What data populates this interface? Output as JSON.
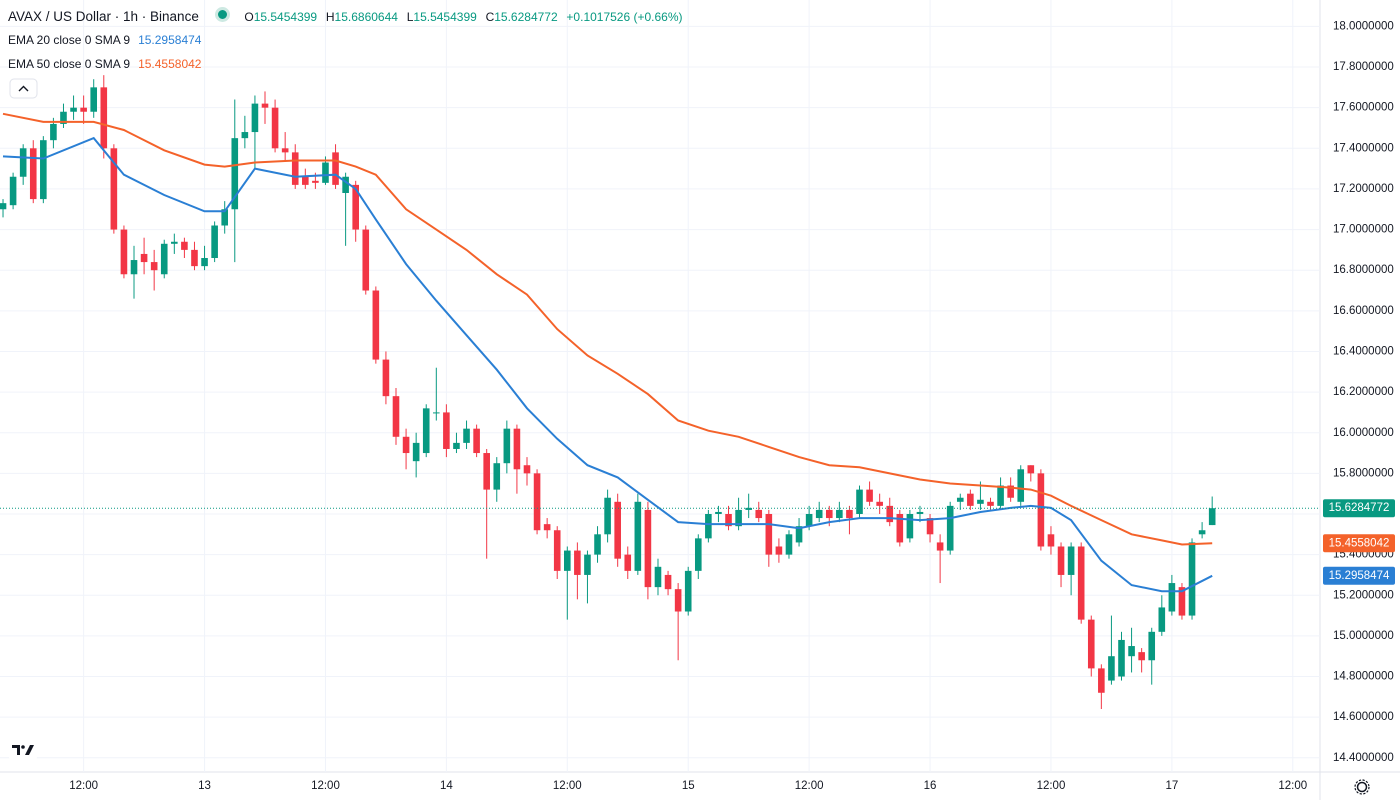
{
  "chart_data": {
    "type": "candlestick",
    "title": "AVAX / US Dollar · 1h · Binance",
    "ohlc_labels": [
      "O",
      "H",
      "L",
      "C"
    ],
    "change": "+0.1017526 (+0.66%)",
    "up_color": "#089981",
    "down_color": "#f23645",
    "xlim": [
      -0.3,
      130.7
    ],
    "xticks": [
      {
        "value": 8,
        "label": "12:00"
      },
      {
        "value": 20,
        "label": "13"
      },
      {
        "value": 32,
        "label": "12:00"
      },
      {
        "value": 44,
        "label": "14"
      },
      {
        "value": 56,
        "label": "12:00"
      },
      {
        "value": 68,
        "label": "15"
      },
      {
        "value": 80,
        "label": "12:00"
      },
      {
        "value": 92,
        "label": "16"
      },
      {
        "value": 104,
        "label": "12:00"
      },
      {
        "value": 116,
        "label": "17"
      },
      {
        "value": 128,
        "label": "12:00"
      }
    ],
    "ylim": [
      14.33,
      18.13
    ],
    "yticks": [
      {
        "value": 14.4,
        "label": "14.4000000"
      },
      {
        "value": 14.6,
        "label": "14.6000000"
      },
      {
        "value": 14.8,
        "label": "14.8000000"
      },
      {
        "value": 15,
        "label": "15.0000000"
      },
      {
        "value": 15.2,
        "label": "15.2000000"
      },
      {
        "value": 15.4,
        "label": "15.4000000"
      },
      {
        "value": 15.6,
        "label": "15.6000000"
      },
      {
        "value": 15.8,
        "label": "15.8000000"
      },
      {
        "value": 16,
        "label": "16.0000000"
      },
      {
        "value": 16.2,
        "label": "16.2000000"
      },
      {
        "value": 16.4,
        "label": "16.4000000"
      },
      {
        "value": 16.6,
        "label": "16.6000000"
      },
      {
        "value": 16.8,
        "label": "16.8000000"
      },
      {
        "value": 17,
        "label": "17.0000000"
      },
      {
        "value": 17.2,
        "label": "17.2000000"
      },
      {
        "value": 17.4,
        "label": "17.4000000"
      },
      {
        "value": 17.6,
        "label": "17.6000000"
      },
      {
        "value": 17.8,
        "label": "17.8000000"
      },
      {
        "value": 18,
        "label": "18.0000000"
      }
    ],
    "grid": true,
    "open": [
      17.1,
      17.12,
      17.26,
      17.4,
      17.15,
      17.44,
      17.52,
      17.58,
      17.6,
      17.58,
      17.7,
      17.4,
      17.0,
      16.78,
      16.88,
      16.84,
      16.78,
      16.93,
      16.94,
      16.9,
      16.82,
      16.86,
      17.02,
      17.1,
      17.45,
      17.48,
      17.62,
      17.6,
      17.4,
      17.38,
      17.26,
      17.24,
      17.23,
      17.38,
      17.18,
      17.22,
      17.0,
      16.7,
      16.36,
      16.18,
      15.98,
      15.86,
      15.9,
      16.1,
      16.1,
      15.92,
      15.95,
      16.02,
      15.9,
      15.72,
      15.85,
      16.02,
      15.84,
      15.8,
      15.55,
      15.52,
      15.32,
      15.42,
      15.3,
      15.4,
      15.5,
      15.66,
      15.4,
      15.32,
      15.62,
      15.24,
      15.3,
      15.23,
      15.12,
      15.32,
      15.48,
      15.6,
      15.6,
      15.54,
      15.62,
      15.62,
      15.6,
      15.44,
      15.4,
      15.46,
      15.54,
      15.58,
      15.62,
      15.58,
      15.62,
      15.6,
      15.72,
      15.66,
      15.64,
      15.6,
      15.48,
      15.6,
      15.58,
      15.46,
      15.42,
      15.66,
      15.7,
      15.65,
      15.66,
      15.64,
      15.74,
      15.66,
      15.84,
      15.8,
      15.5,
      15.44,
      15.3,
      15.44,
      15.08,
      14.84,
      14.78,
      14.8,
      14.9,
      14.92,
      14.88,
      15.02,
      15.12,
      15.24,
      15.1,
      15.5,
      15.5454399
    ],
    "high": [
      17.15,
      17.28,
      17.42,
      17.44,
      17.46,
      17.55,
      17.62,
      17.66,
      17.66,
      17.74,
      17.76,
      17.42,
      17.02,
      16.92,
      16.96,
      16.9,
      16.95,
      16.98,
      16.96,
      16.94,
      16.92,
      17.04,
      17.14,
      17.64,
      17.56,
      17.66,
      17.68,
      17.64,
      17.48,
      17.42,
      17.3,
      17.28,
      17.36,
      17.42,
      17.28,
      17.24,
      17.02,
      16.72,
      16.4,
      16.22,
      16.02,
      16.0,
      16.14,
      16.32,
      16.14,
      16.0,
      16.06,
      16.04,
      15.92,
      15.88,
      16.06,
      16.04,
      15.88,
      15.82,
      15.58,
      15.54,
      15.44,
      15.46,
      15.42,
      15.54,
      15.72,
      15.7,
      15.44,
      15.7,
      15.66,
      15.38,
      15.32,
      15.26,
      15.34,
      15.5,
      15.62,
      15.64,
      15.64,
      15.68,
      15.7,
      15.66,
      15.62,
      15.48,
      15.52,
      15.58,
      15.64,
      15.66,
      15.64,
      15.66,
      15.64,
      15.74,
      15.76,
      15.7,
      15.68,
      15.62,
      15.62,
      15.64,
      15.6,
      15.5,
      15.66,
      15.7,
      15.72,
      15.76,
      15.68,
      15.78,
      15.78,
      15.84,
      15.84,
      15.82,
      15.54,
      15.46,
      15.46,
      15.46,
      15.1,
      14.86,
      15.1,
      15.02,
      15.04,
      14.94,
      15.04,
      15.2,
      15.3,
      15.26,
      15.48,
      15.56,
      15.6860644
    ],
    "low": [
      17.06,
      17.1,
      17.22,
      17.13,
      17.13,
      17.4,
      17.5,
      17.54,
      17.52,
      17.55,
      17.35,
      16.98,
      16.76,
      16.66,
      16.78,
      16.7,
      16.76,
      16.88,
      16.86,
      16.8,
      16.8,
      16.84,
      16.98,
      16.84,
      17.4,
      17.3,
      17.52,
      17.38,
      17.34,
      17.2,
      17.2,
      17.2,
      17.22,
      17.2,
      16.92,
      16.94,
      16.68,
      16.34,
      16.14,
      15.94,
      15.82,
      15.78,
      15.88,
      16.06,
      15.88,
      15.9,
      15.92,
      15.88,
      15.38,
      15.66,
      15.8,
      15.7,
      15.74,
      15.5,
      15.48,
      15.28,
      15.08,
      15.18,
      15.16,
      15.36,
      15.46,
      15.34,
      15.28,
      15.3,
      15.18,
      15.2,
      15.2,
      14.88,
      15.1,
      15.28,
      15.46,
      15.56,
      15.52,
      15.52,
      15.58,
      15.56,
      15.34,
      15.36,
      15.38,
      15.44,
      15.52,
      15.56,
      15.54,
      15.56,
      15.5,
      15.58,
      15.64,
      15.6,
      15.54,
      15.44,
      15.46,
      15.56,
      15.46,
      15.26,
      15.4,
      15.62,
      15.62,
      15.62,
      15.62,
      15.62,
      15.66,
      15.64,
      15.76,
      15.42,
      15.4,
      15.24,
      15.2,
      15.06,
      14.8,
      14.64,
      14.76,
      14.78,
      14.82,
      14.82,
      14.76,
      15.0,
      15.1,
      15.08,
      15.08,
      15.48,
      15.5454399
    ],
    "close": [
      17.13,
      17.26,
      17.4,
      17.15,
      17.44,
      17.52,
      17.58,
      17.6,
      17.58,
      17.7,
      17.4,
      17.0,
      16.78,
      16.85,
      16.84,
      16.8,
      16.93,
      16.94,
      16.9,
      16.82,
      16.86,
      17.02,
      17.1,
      17.45,
      17.48,
      17.62,
      17.6,
      17.4,
      17.38,
      17.22,
      17.22,
      17.23,
      17.33,
      17.22,
      17.26,
      17.0,
      16.7,
      16.36,
      16.18,
      15.98,
      15.9,
      15.95,
      16.12,
      16.1,
      15.92,
      15.95,
      16.02,
      15.9,
      15.72,
      15.85,
      16.02,
      15.82,
      15.8,
      15.52,
      15.52,
      15.32,
      15.42,
      15.3,
      15.4,
      15.5,
      15.68,
      15.38,
      15.32,
      15.66,
      15.24,
      15.34,
      15.23,
      15.12,
      15.32,
      15.48,
      15.6,
      15.61,
      15.54,
      15.62,
      15.63,
      15.58,
      15.4,
      15.4,
      15.5,
      15.54,
      15.6,
      15.62,
      15.58,
      15.62,
      15.58,
      15.72,
      15.66,
      15.64,
      15.56,
      15.46,
      15.6,
      15.61,
      15.5,
      15.42,
      15.64,
      15.68,
      15.64,
      15.67,
      15.64,
      15.74,
      15.68,
      15.82,
      15.8,
      15.44,
      15.44,
      15.3,
      15.44,
      15.08,
      14.84,
      14.72,
      14.9,
      14.98,
      14.95,
      14.88,
      15.02,
      15.14,
      15.26,
      15.1,
      15.46,
      15.52,
      15.6284772
    ],
    "indicators": [
      {
        "name": "EMA 20 close 0 SMA 9",
        "color": "#2a7fd4",
        "x": [
          0,
          4,
          9,
          12,
          16,
          20,
          22,
          25,
          29,
          33,
          35,
          37,
          40,
          43,
          46,
          49,
          52,
          55,
          58,
          61,
          64,
          67,
          70,
          73,
          76,
          79,
          82,
          85,
          88,
          91,
          94,
          97,
          100,
          102,
          104,
          106,
          109,
          112,
          115,
          117,
          120
        ],
        "values": [
          17.36,
          17.35,
          17.45,
          17.27,
          17.17,
          17.09,
          17.09,
          17.3,
          17.26,
          17.27,
          17.2,
          17.05,
          16.83,
          16.65,
          16.48,
          16.31,
          16.12,
          15.97,
          15.84,
          15.78,
          15.67,
          15.56,
          15.55,
          15.55,
          15.55,
          15.53,
          15.56,
          15.58,
          15.58,
          15.57,
          15.58,
          15.61,
          15.63,
          15.64,
          15.63,
          15.57,
          15.37,
          15.25,
          15.22,
          15.22,
          15.2958474
        ]
      },
      {
        "name": "EMA 50 close 0 SMA 9",
        "color": "#f4622a",
        "x": [
          0,
          4,
          9,
          12,
          16,
          20,
          22,
          25,
          29,
          33,
          35,
          37,
          40,
          43,
          46,
          49,
          52,
          55,
          58,
          61,
          64,
          67,
          70,
          73,
          76,
          79,
          82,
          85,
          88,
          91,
          94,
          97,
          100,
          102,
          104,
          106,
          109,
          112,
          115,
          117,
          120
        ],
        "values": [
          17.57,
          17.53,
          17.53,
          17.49,
          17.39,
          17.32,
          17.31,
          17.33,
          17.34,
          17.34,
          17.31,
          17.27,
          17.1,
          17.0,
          16.9,
          16.78,
          16.68,
          16.51,
          16.38,
          16.29,
          16.19,
          16.06,
          16.01,
          15.98,
          15.93,
          15.88,
          15.84,
          15.83,
          15.8,
          15.77,
          15.75,
          15.74,
          15.73,
          15.72,
          15.69,
          15.64,
          15.57,
          15.5,
          15.47,
          15.45,
          15.4558042
        ]
      }
    ]
  }
}
